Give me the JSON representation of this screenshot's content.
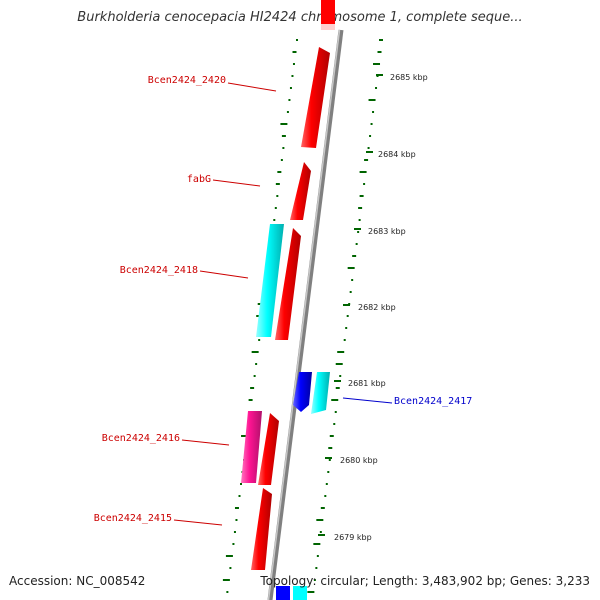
{
  "title": "Burkholderia cenocepacia HI2424 chromosome 1, complete seque...",
  "footer": {
    "accession": "Accession: NC_008542",
    "summary": "Topology: circular; Length: 3,483,902 bp; Genes: 3,233"
  },
  "kbp_ticks": [
    "2685 kbp",
    "2684 kbp",
    "2683 kbp",
    "2682 kbp",
    "2681 kbp",
    "2680 kbp",
    "2679 kbp"
  ],
  "gene_labels": [
    {
      "text": "Bcen2424_2420",
      "strand": "reverse"
    },
    {
      "text": "fabG",
      "strand": "reverse"
    },
    {
      "text": "Bcen2424_2418",
      "strand": "reverse"
    },
    {
      "text": "Bcen2424_2417",
      "strand": "forward"
    },
    {
      "text": "Bcen2424_2416",
      "strand": "reverse"
    },
    {
      "text": "Bcen2424_2415",
      "strand": "reverse"
    }
  ],
  "colors": {
    "backbone": "#808080",
    "cds_reverse": "#ff0000",
    "cds_forward_dark": "#0000ff",
    "cds_cyan": "#00ffff",
    "cds_pink": "#ff1493",
    "gc_ticks": "#006400",
    "label_reverse": "#cc0000",
    "label_forward": "#0000cc"
  }
}
